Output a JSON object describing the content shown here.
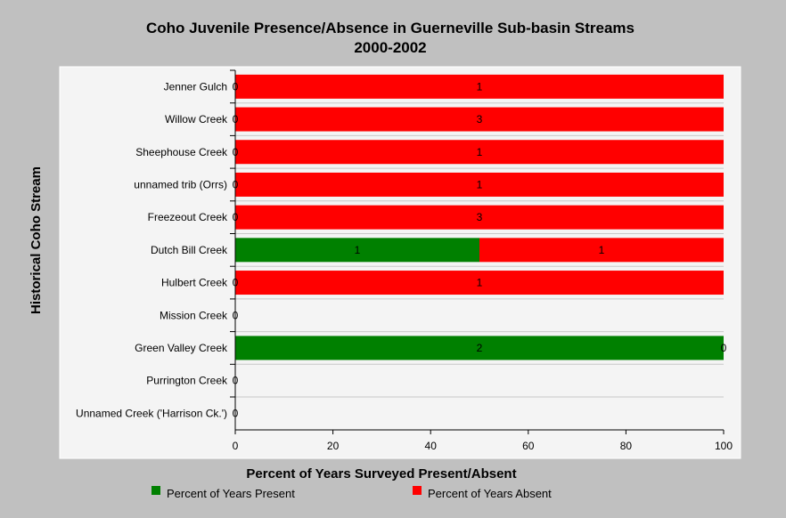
{
  "chart_data": {
    "type": "bar",
    "orientation": "horizontal",
    "stacked": true,
    "title": "Coho Juvenile Presence/Absence in Guerneville Sub-basin Streams",
    "subtitle": "2000-2002",
    "xlabel": "Percent of Years Surveyed Present/Absent",
    "ylabel": "Historical Coho Stream",
    "xlim": [
      0,
      100
    ],
    "x_ticks": [
      "0",
      "20",
      "40",
      "60",
      "80",
      "100"
    ],
    "categories": [
      "Jenner Gulch",
      "Willow Creek",
      "Sheephouse Creek",
      "unnamed trib (Orrs)",
      "Freezeout Creek",
      "Dutch Bill Creek",
      "Hulbert Creek",
      "Mission Creek",
      "Green Valley Creek",
      "Purrington Creek",
      "Unnamed Creek ('Harrison Ck.')"
    ],
    "series": [
      {
        "name": "Percent of Years Present",
        "color": "#008000",
        "values": [
          0,
          0,
          0,
          0,
          0,
          50,
          0,
          0,
          100,
          0,
          0
        ],
        "labels": [
          "0",
          "0",
          "0",
          "0",
          "0",
          "1",
          "0",
          "0",
          "2",
          "0",
          "0"
        ]
      },
      {
        "name": "Percent of Years Absent",
        "color": "#ff0000",
        "values": [
          100,
          100,
          100,
          100,
          100,
          50,
          100,
          0,
          0,
          0,
          0
        ],
        "labels": [
          "1",
          "3",
          "1",
          "1",
          "3",
          "1",
          "1",
          "",
          "0",
          "",
          ""
        ]
      }
    ],
    "grid": "horizontal",
    "legend_position": "bottom"
  }
}
